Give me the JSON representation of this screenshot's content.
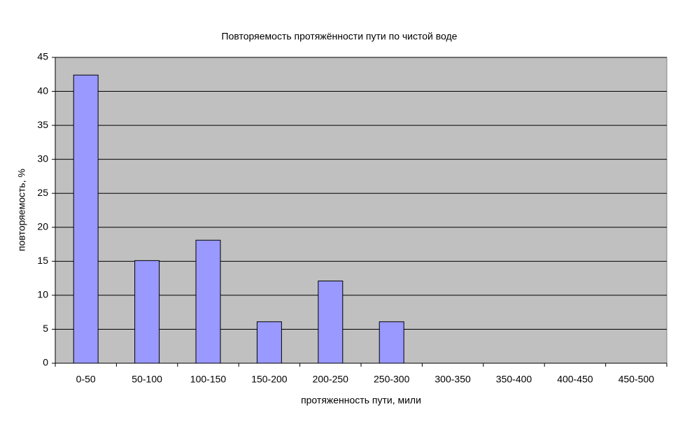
{
  "chart_data": {
    "type": "bar",
    "title": "Повторяемость протяжённости пути по чистой воде",
    "x_label": "протяженность пути, мили",
    "y_label": "повторяемость, %",
    "categories": [
      "0-50",
      "50-100",
      "100-150",
      "150-200",
      "200-250",
      "250-300",
      "300-350",
      "350-400",
      "400-450",
      "450-500"
    ],
    "values": [
      42.4,
      15.1,
      18.1,
      6.1,
      12.1,
      6.1,
      0,
      0,
      0,
      0
    ],
    "color": "#9999ff",
    "ylim": [
      0,
      45
    ],
    "yticks": [
      0,
      5,
      10,
      15,
      20,
      25,
      30,
      35,
      40,
      45
    ],
    "grid": true
  }
}
